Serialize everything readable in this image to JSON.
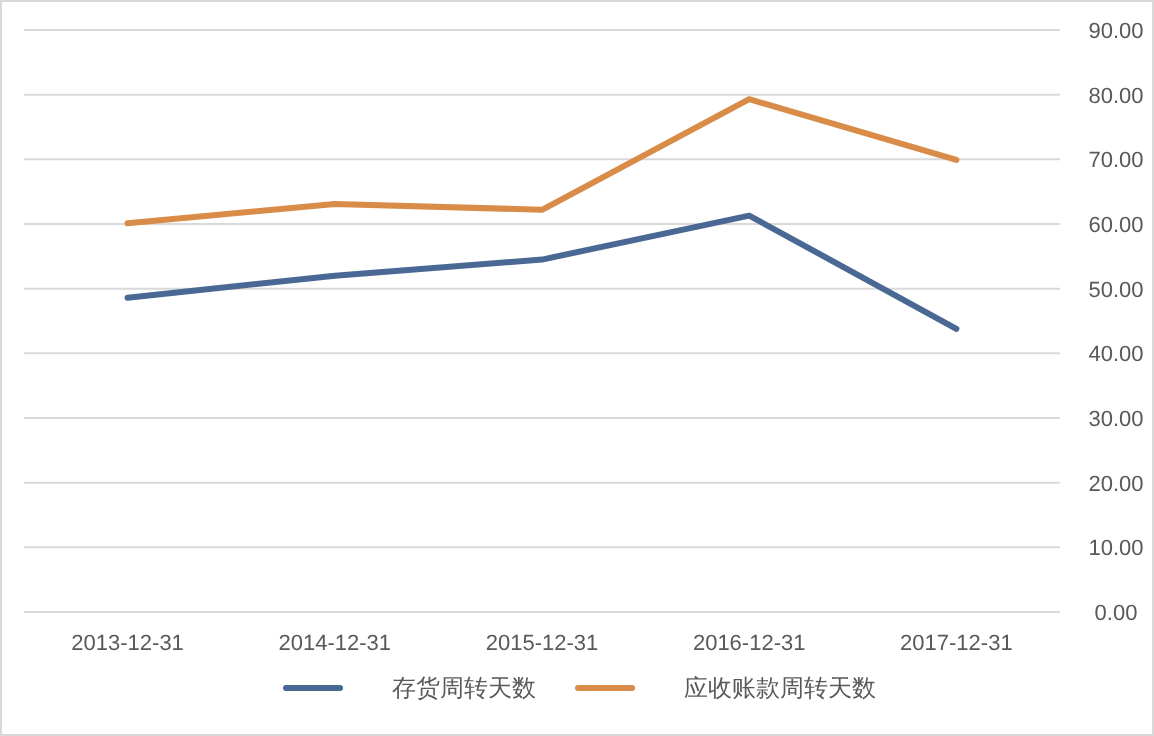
{
  "chart_data": {
    "type": "line",
    "categories": [
      "2013-12-31",
      "2014-12-31",
      "2015-12-31",
      "2016-12-31",
      "2017-12-31"
    ],
    "series": [
      {
        "name": "存货周转天数",
        "color": "#4a6894",
        "values": [
          48.6,
          52.0,
          54.5,
          61.3,
          43.8
        ]
      },
      {
        "name": "应收账款周转天数",
        "color": "#d98c48",
        "values": [
          60.1,
          63.1,
          62.2,
          79.3,
          69.9
        ]
      }
    ],
    "ylim": [
      0,
      90
    ],
    "yticks": [
      {
        "value": 0,
        "label": "0.00"
      },
      {
        "value": 10,
        "label": "10.00"
      },
      {
        "value": 20,
        "label": "20.00"
      },
      {
        "value": 30,
        "label": "30.00"
      },
      {
        "value": 40,
        "label": "40.00"
      },
      {
        "value": 50,
        "label": "50.00"
      },
      {
        "value": 60,
        "label": "60.00"
      },
      {
        "value": 70,
        "label": "70.00"
      },
      {
        "value": 80,
        "label": "80.00"
      },
      {
        "value": 90,
        "label": "90.00"
      }
    ],
    "grid": "y",
    "legend": "bottom",
    "marker": "none",
    "line_style": "solid"
  }
}
